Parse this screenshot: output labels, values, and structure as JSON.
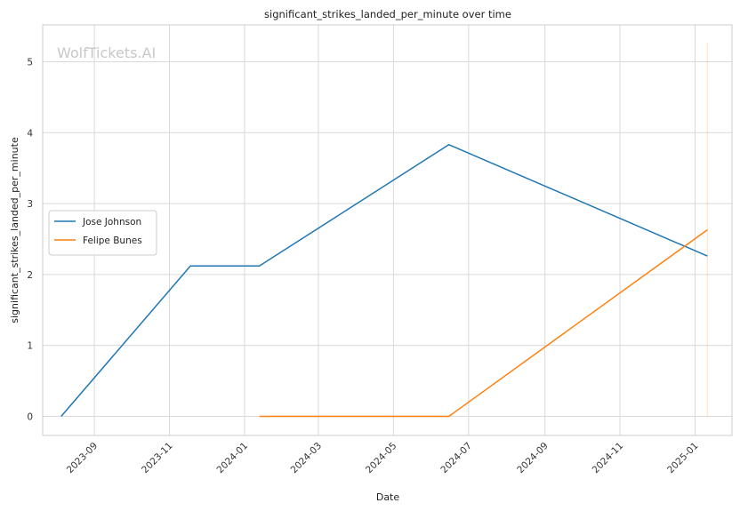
{
  "chart_data": {
    "type": "line",
    "title": "significant_strikes_landed_per_minute over time",
    "xlabel": "Date",
    "ylabel": "significant_strikes_landed_per_minute",
    "watermark": "WolfTickets.AI",
    "x_ticks": [
      "2023-09",
      "2023-11",
      "2024-01",
      "2024-03",
      "2024-05",
      "2024-07",
      "2024-09",
      "2024-11",
      "2025-01"
    ],
    "y_ticks": [
      "0",
      "1",
      "2",
      "3",
      "4",
      "5"
    ],
    "xlim": [
      "2023-07-21",
      "2025-01-31"
    ],
    "ylim": [
      -0.27,
      5.52
    ],
    "grid": true,
    "legend_position": "center-left",
    "series": [
      {
        "name": "Jose Johnson",
        "color": "#1f77b4",
        "x": [
          "2023-08-05",
          "2023-11-18",
          "2024-01-13",
          "2024-06-15",
          "2025-01-11"
        ],
        "y": [
          0.0,
          2.12,
          2.12,
          3.83,
          2.26
        ]
      },
      {
        "name": "Felipe Bunes",
        "color": "#ff7f0e",
        "x": [
          "2024-01-13",
          "2024-06-15",
          "2025-01-11"
        ],
        "y": [
          0.0,
          0.0,
          2.63
        ]
      }
    ],
    "marker_line": {
      "x": "2025-01-11",
      "y_range": [
        0.0,
        5.27
      ],
      "color": "#ff7f0e"
    }
  }
}
